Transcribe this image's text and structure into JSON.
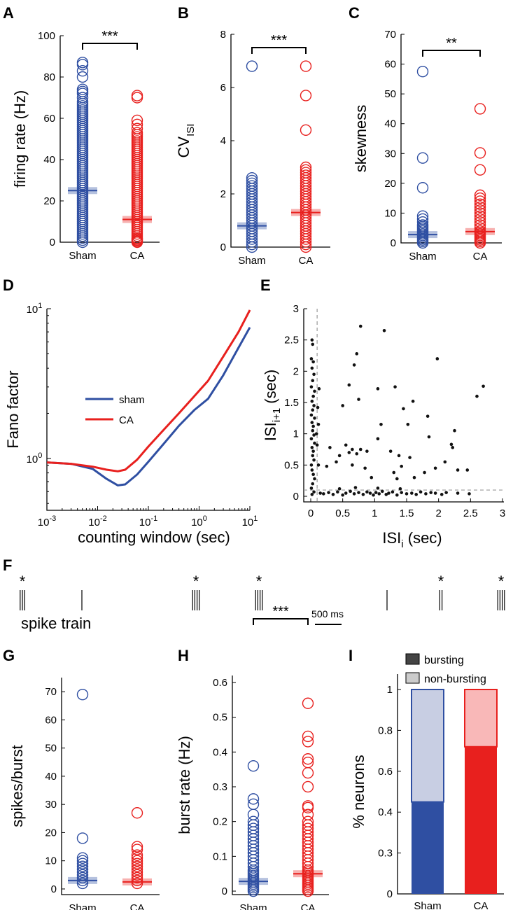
{
  "colors": {
    "sham": "#2f4fa2",
    "ca": "#e8201e"
  },
  "chart_data": [
    {
      "panel": "A",
      "type": "scatter",
      "ylabel": "firing rate (Hz)",
      "categories": [
        "Sham",
        "CA"
      ],
      "ylim": [
        0,
        100
      ],
      "yticks": [
        "0",
        "20",
        "40",
        "60",
        "80",
        "100"
      ],
      "significance": "***",
      "series": [
        {
          "name": "Sham",
          "mean": 25,
          "values": [
            0,
            1,
            2,
            3,
            4,
            5,
            6,
            7,
            8,
            9,
            10,
            11,
            12,
            13,
            14,
            15,
            16,
            17,
            18,
            19,
            20,
            21,
            22,
            23,
            24,
            25,
            26,
            27,
            28,
            29,
            30,
            31,
            32,
            33,
            34,
            35,
            36,
            37,
            38,
            39,
            40,
            41,
            42,
            43,
            44,
            45,
            46,
            47,
            48,
            49,
            50,
            51,
            52,
            53,
            54,
            55,
            56,
            57,
            58,
            59,
            60,
            61,
            62,
            63,
            64,
            65,
            66,
            67,
            68,
            70,
            72,
            73,
            74,
            80,
            83,
            86,
            87
          ]
        },
        {
          "name": "CA",
          "mean": 11,
          "values": [
            0,
            0.5,
            1,
            1.5,
            2,
            3,
            4,
            5,
            6,
            7,
            8,
            9,
            10,
            11,
            12,
            13,
            14,
            15,
            16,
            17,
            18,
            19,
            20,
            21,
            22,
            23,
            24,
            25,
            26,
            27,
            28,
            29,
            30,
            31,
            32,
            33,
            34,
            35,
            36,
            37,
            38,
            39,
            40,
            41,
            42,
            43,
            44,
            45,
            46,
            47,
            48,
            49,
            50,
            51,
            52,
            53,
            55,
            57,
            59,
            70,
            71
          ]
        }
      ]
    },
    {
      "panel": "B",
      "type": "scatter",
      "ylabel_main": "CV",
      "ylabel_sub": "ISI",
      "categories": [
        "Sham",
        "CA"
      ],
      "ylim": [
        0,
        8
      ],
      "yticks": [
        "0",
        "2",
        "4",
        "6",
        "8"
      ],
      "significance": "***",
      "series": [
        {
          "name": "Sham",
          "mean": 0.8,
          "values": [
            0,
            0.1,
            0.2,
            0.3,
            0.4,
            0.5,
            0.6,
            0.7,
            0.8,
            0.9,
            1.0,
            1.1,
            1.2,
            1.3,
            1.4,
            1.5,
            1.6,
            1.7,
            1.8,
            1.9,
            2.0,
            2.1,
            2.2,
            2.3,
            2.4,
            2.5,
            2.6,
            6.8
          ]
        },
        {
          "name": "CA",
          "mean": 1.3,
          "values": [
            0,
            0.1,
            0.2,
            0.3,
            0.4,
            0.5,
            0.6,
            0.7,
            0.8,
            0.9,
            1.0,
            1.1,
            1.2,
            1.3,
            1.4,
            1.5,
            1.6,
            1.7,
            1.8,
            1.9,
            2.0,
            2.1,
            2.2,
            2.3,
            2.4,
            2.5,
            2.6,
            2.7,
            2.8,
            2.9,
            3.0,
            4.4,
            5.7,
            6.8
          ]
        }
      ]
    },
    {
      "panel": "C",
      "type": "scatter",
      "ylabel": "skewness",
      "categories": [
        "Sham",
        "CA"
      ],
      "ylim": [
        0,
        70
      ],
      "yticks": [
        "0",
        "10",
        "20",
        "30",
        "40",
        "50",
        "60",
        "70"
      ],
      "significance": "**",
      "series": [
        {
          "name": "Sham",
          "mean": 2.8,
          "values": [
            0,
            0.5,
            1,
            1.5,
            2,
            2.5,
            3,
            3.5,
            4,
            4.5,
            5,
            5.5,
            6,
            7,
            8,
            9,
            18.5,
            28.5,
            57.5
          ]
        },
        {
          "name": "CA",
          "mean": 3.8,
          "values": [
            0,
            0.5,
            1,
            1.5,
            2,
            2.5,
            3,
            3.5,
            4,
            5,
            6,
            7,
            8,
            9,
            10,
            11,
            12,
            13,
            14,
            15,
            16,
            24.5,
            30.2,
            45
          ]
        }
      ]
    },
    {
      "panel": "D",
      "type": "line",
      "xlabel": "counting window (sec)",
      "ylabel": "Fano factor",
      "xscale": "log",
      "yscale": "log",
      "xlim": [
        0.001,
        10
      ],
      "ylim": [
        0.45,
        10
      ],
      "xticks": [
        [
          "10",
          "-3"
        ],
        [
          "10",
          "-2"
        ],
        [
          "10",
          "-1"
        ],
        [
          "10",
          "0"
        ],
        [
          "10",
          "1"
        ]
      ],
      "yticks": [
        [
          "10",
          "0"
        ],
        [
          "10",
          "1"
        ]
      ],
      "legend": [
        "sham",
        "CA"
      ],
      "series": [
        {
          "name": "sham",
          "x": [
            0.001,
            0.003,
            0.008,
            0.015,
            0.025,
            0.035,
            0.06,
            0.1,
            0.2,
            0.4,
            0.8,
            1.5,
            3,
            6,
            10
          ],
          "y": [
            0.94,
            0.92,
            0.85,
            0.73,
            0.66,
            0.67,
            0.78,
            0.95,
            1.25,
            1.65,
            2.1,
            2.5,
            3.6,
            5.5,
            7.5
          ]
        },
        {
          "name": "CA",
          "x": [
            0.001,
            0.003,
            0.008,
            0.015,
            0.025,
            0.035,
            0.06,
            0.1,
            0.2,
            0.4,
            0.8,
            1.5,
            3,
            6,
            10
          ],
          "y": [
            0.94,
            0.92,
            0.88,
            0.84,
            0.82,
            0.84,
            0.98,
            1.2,
            1.55,
            2.0,
            2.6,
            3.3,
            4.8,
            7.0,
            9.8
          ]
        }
      ]
    },
    {
      "panel": "E",
      "type": "scatter",
      "xlabel_main": "ISI",
      "xlabel_sub": "i",
      "xlabel_unit": " (sec)",
      "ylabel_main": "ISI",
      "ylabel_sub": "i+1",
      "ylabel_unit": " (sec)",
      "xlim": [
        0,
        3
      ],
      "ylim": [
        0,
        3
      ],
      "xticks": [
        "0",
        "0.5",
        "1",
        "1.5",
        "2",
        "2.5",
        "3"
      ],
      "yticks": [
        "0",
        "0.5",
        "1",
        "1.5",
        "2",
        "2.5",
        "3"
      ],
      "threshold": 0.1,
      "points": [
        [
          0.02,
          2.5
        ],
        [
          0.03,
          2.43
        ],
        [
          0.01,
          2.2
        ],
        [
          0.04,
          2.15
        ],
        [
          0.02,
          2.05
        ],
        [
          0.05,
          1.95
        ],
        [
          0.03,
          1.85
        ],
        [
          0.01,
          1.75
        ],
        [
          0.06,
          1.68
        ],
        [
          0.04,
          1.6
        ],
        [
          0.02,
          1.52
        ],
        [
          0.05,
          1.45
        ],
        [
          0.03,
          1.38
        ],
        [
          0.01,
          1.3
        ],
        [
          0.06,
          1.25
        ],
        [
          0.02,
          1.18
        ],
        [
          0.04,
          1.12
        ],
        [
          0.03,
          1.05
        ],
        [
          0.05,
          0.98
        ],
        [
          0.01,
          0.92
        ],
        [
          0.06,
          0.85
        ],
        [
          0.02,
          0.78
        ],
        [
          0.04,
          0.72
        ],
        [
          0.03,
          0.65
        ],
        [
          0.05,
          0.58
        ],
        [
          0.01,
          0.5
        ],
        [
          0.02,
          0.42
        ],
        [
          0.04,
          0.35
        ],
        [
          0.06,
          0.28
        ],
        [
          0.03,
          0.2
        ],
        [
          0.01,
          0.13
        ],
        [
          0.05,
          0.07
        ],
        [
          0.02,
          0.03
        ],
        [
          0.12,
          1.15
        ],
        [
          0.11,
          1.42
        ],
        [
          0.13,
          1.72
        ],
        [
          0.1,
          0.82
        ],
        [
          0.12,
          0.5
        ],
        [
          0.09,
          1.0
        ],
        [
          0.15,
          0.05
        ],
        [
          0.2,
          0.04
        ],
        [
          0.28,
          0.06
        ],
        [
          0.35,
          0.03
        ],
        [
          0.42,
          0.07
        ],
        [
          0.5,
          0.02
        ],
        [
          0.55,
          0.05
        ],
        [
          0.62,
          0.08
        ],
        [
          0.68,
          0.04
        ],
        [
          0.75,
          0.06
        ],
        [
          0.82,
          0.03
        ],
        [
          0.88,
          0.07
        ],
        [
          0.93,
          0.05
        ],
        [
          0.98,
          0.02
        ],
        [
          1.02,
          0.06
        ],
        [
          1.07,
          0.04
        ],
        [
          1.12,
          0.08
        ],
        [
          1.18,
          0.03
        ],
        [
          1.22,
          0.05
        ],
        [
          1.28,
          0.07
        ],
        [
          1.35,
          0.02
        ],
        [
          1.42,
          0.06
        ],
        [
          1.5,
          0.04
        ],
        [
          1.58,
          0.05
        ],
        [
          1.65,
          0.03
        ],
        [
          1.72,
          0.07
        ],
        [
          1.8,
          0.04
        ],
        [
          1.88,
          0.06
        ],
        [
          1.95,
          0.05
        ],
        [
          2.05,
          0.03
        ],
        [
          2.12,
          0.06
        ],
        [
          2.3,
          0.05
        ],
        [
          2.48,
          0.04
        ],
        [
          0.45,
          0.12
        ],
        [
          0.7,
          0.14
        ],
        [
          1.05,
          0.13
        ],
        [
          1.4,
          0.12
        ],
        [
          0.78,
          2.72
        ],
        [
          1.15,
          2.65
        ],
        [
          0.72,
          2.28
        ],
        [
          0.68,
          2.1
        ],
        [
          1.98,
          2.2
        ],
        [
          0.6,
          1.78
        ],
        [
          1.05,
          1.72
        ],
        [
          1.32,
          1.75
        ],
        [
          2.7,
          1.76
        ],
        [
          0.5,
          1.45
        ],
        [
          0.75,
          1.55
        ],
        [
          1.6,
          1.52
        ],
        [
          2.6,
          1.6
        ],
        [
          1.45,
          1.4
        ],
        [
          1.83,
          1.28
        ],
        [
          1.1,
          1.15
        ],
        [
          1.52,
          1.15
        ],
        [
          2.25,
          1.05
        ],
        [
          1.05,
          0.92
        ],
        [
          1.85,
          0.95
        ],
        [
          2.2,
          0.83
        ],
        [
          2.22,
          0.78
        ],
        [
          0.3,
          0.78
        ],
        [
          0.45,
          0.65
        ],
        [
          0.55,
          0.82
        ],
        [
          0.6,
          0.7
        ],
        [
          0.65,
          0.75
        ],
        [
          0.72,
          0.68
        ],
        [
          0.78,
          0.75
        ],
        [
          0.88,
          0.72
        ],
        [
          1.25,
          0.72
        ],
        [
          1.38,
          0.65
        ],
        [
          1.55,
          0.62
        ],
        [
          0.4,
          0.55
        ],
        [
          0.85,
          0.45
        ],
        [
          1.3,
          0.38
        ],
        [
          1.35,
          0.28
        ],
        [
          1.95,
          0.45
        ],
        [
          2.3,
          0.42
        ],
        [
          2.45,
          0.42
        ],
        [
          0.25,
          0.48
        ],
        [
          0.65,
          0.5
        ],
        [
          1.62,
          0.3
        ],
        [
          2.1,
          0.55
        ],
        [
          1.42,
          0.48
        ],
        [
          1.78,
          0.38
        ],
        [
          0.95,
          0.3
        ]
      ]
    },
    {
      "panel": "F",
      "type": "raster",
      "label": "spike train",
      "scalebar_label": "500 ms",
      "burst_marker": "*",
      "spike_groups": [
        {
          "x": 32,
          "n": 3,
          "burst": true
        },
        {
          "x": 117,
          "n": 1,
          "burst": false
        },
        {
          "x": 280,
          "n": 4,
          "burst": true
        },
        {
          "x": 370,
          "n": 4,
          "burst": true
        },
        {
          "x": 553,
          "n": 1,
          "burst": false
        },
        {
          "x": 630,
          "n": 2,
          "burst": true
        },
        {
          "x": 716,
          "n": 4,
          "burst": true
        }
      ]
    },
    {
      "panel": "G",
      "type": "scatter",
      "ylabel": "spikes/burst",
      "categories": [
        "Sham",
        "CA"
      ],
      "ylim": [
        -2,
        75
      ],
      "yticks": [
        "0",
        "10",
        "20",
        "30",
        "40",
        "50",
        "60",
        "70"
      ],
      "significance": "",
      "series": [
        {
          "name": "Sham",
          "mean": 3,
          "values": [
            2,
            3,
            4,
            5,
            6,
            7,
            8,
            9,
            10,
            11,
            18,
            69
          ]
        },
        {
          "name": "CA",
          "mean": 2.5,
          "values": [
            2,
            3,
            4,
            5,
            6,
            7,
            8,
            9,
            10,
            11,
            12,
            14,
            15,
            27
          ]
        }
      ]
    },
    {
      "panel": "H",
      "type": "scatter",
      "ylabel": "burst rate (Hz)",
      "categories": [
        "Sham",
        "CA"
      ],
      "ylim": [
        -0.01,
        0.62
      ],
      "yticks": [
        "0",
        "0.1",
        "0.2",
        "0.3",
        "0.4",
        "0.5",
        "0.6"
      ],
      "significance": "***",
      "series": [
        {
          "name": "Sham",
          "mean": 0.028,
          "values": [
            0,
            0.005,
            0.01,
            0.015,
            0.02,
            0.025,
            0.03,
            0.035,
            0.04,
            0.045,
            0.05,
            0.055,
            0.06,
            0.07,
            0.08,
            0.09,
            0.1,
            0.11,
            0.12,
            0.13,
            0.14,
            0.15,
            0.16,
            0.17,
            0.18,
            0.19,
            0.2,
            0.22,
            0.25,
            0.265,
            0.36
          ]
        },
        {
          "name": "CA",
          "mean": 0.05,
          "values": [
            0,
            0.005,
            0.01,
            0.015,
            0.02,
            0.025,
            0.03,
            0.035,
            0.04,
            0.045,
            0.05,
            0.055,
            0.06,
            0.07,
            0.08,
            0.09,
            0.1,
            0.11,
            0.12,
            0.13,
            0.14,
            0.15,
            0.16,
            0.17,
            0.18,
            0.19,
            0.2,
            0.22,
            0.24,
            0.245,
            0.3,
            0.34,
            0.37,
            0.38,
            0.43,
            0.445,
            0.54
          ]
        }
      ]
    },
    {
      "panel": "I",
      "type": "stacked-bar",
      "ylabel": "% neurons",
      "categories": [
        "Sham",
        "CA"
      ],
      "ylim": [
        0,
        1
      ],
      "yticks": [
        "0",
        "0.3",
        "0.4",
        "0.6",
        "0.8",
        "1"
      ],
      "legend": [
        "bursting",
        "non-bursting"
      ],
      "series": [
        {
          "name": "bursting",
          "values": [
            0.45,
            0.72
          ]
        },
        {
          "name": "non-bursting",
          "values": [
            0.55,
            0.28
          ]
        }
      ]
    }
  ]
}
